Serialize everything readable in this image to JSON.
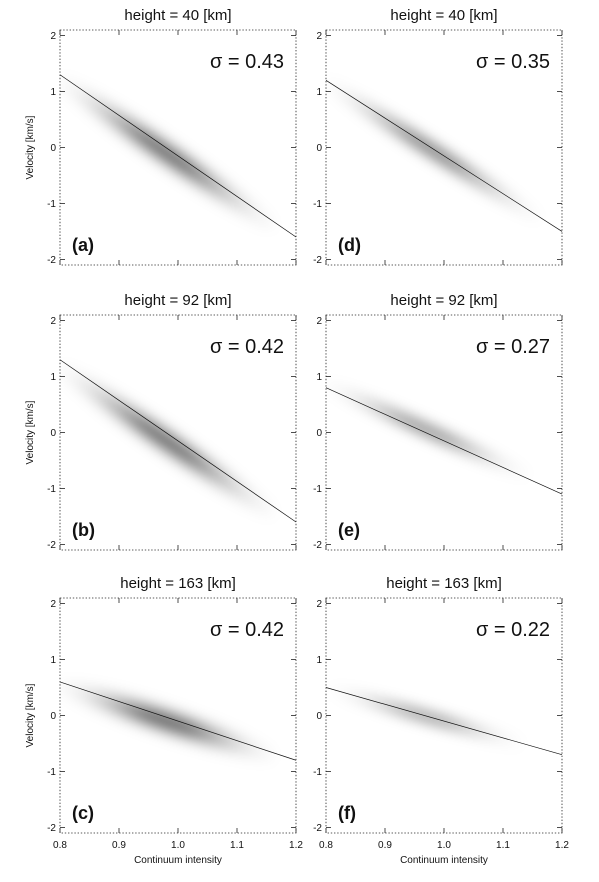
{
  "chart_data": [
    {
      "type": "heatmap",
      "panel": "(a)",
      "title": "height =  40  [km]",
      "sigma": "σ = 0.43",
      "ylabel": "Velocity [km/s]",
      "xlabel": "",
      "xlim": [
        0.8,
        1.2
      ],
      "ylim": [
        -2.1,
        2.1
      ],
      "xticks": [
        "0.8",
        "0.9",
        "1.0",
        "1.1",
        "1.2"
      ],
      "yticks": [
        "-2",
        "-1",
        "0",
        "1",
        "2"
      ],
      "fit": {
        "x": [
          0.8,
          1.2
        ],
        "y": [
          1.3,
          -1.6
        ]
      },
      "density": {
        "center": [
          0.98,
          -0.1
        ],
        "spread_along": 0.1,
        "spread_across": 0.3
      }
    },
    {
      "type": "heatmap",
      "panel": "(b)",
      "title": "height =  92  [km]",
      "sigma": "σ = 0.42",
      "ylabel": "Velocity [km/s]",
      "xlabel": "",
      "xlim": [
        0.8,
        1.2
      ],
      "ylim": [
        -2.1,
        2.1
      ],
      "xticks": [
        "0.8",
        "0.9",
        "1.0",
        "1.1",
        "1.2"
      ],
      "yticks": [
        "-2",
        "-1",
        "0",
        "1",
        "2"
      ],
      "fit": {
        "x": [
          0.8,
          1.2
        ],
        "y": [
          1.3,
          -1.6
        ]
      },
      "density": {
        "center": [
          0.98,
          -0.15
        ],
        "spread_along": 0.1,
        "spread_across": 0.3
      }
    },
    {
      "type": "heatmap",
      "panel": "(c)",
      "title": "height = 163  [km]",
      "sigma": "σ = 0.42",
      "ylabel": "Velocity [km/s]",
      "xlabel": "Continuum intensity",
      "xlim": [
        0.8,
        1.2
      ],
      "ylim": [
        -2.1,
        2.1
      ],
      "xticks": [
        "0.8",
        "0.9",
        "1.0",
        "1.1",
        "1.2"
      ],
      "yticks": [
        "-2",
        "-1",
        "0",
        "1",
        "2"
      ],
      "fit": {
        "x": [
          0.8,
          1.2
        ],
        "y": [
          0.6,
          -0.8
        ]
      },
      "density": {
        "center": [
          0.98,
          -0.1
        ],
        "spread_along": 0.1,
        "spread_across": 0.33
      }
    },
    {
      "type": "heatmap",
      "panel": "(d)",
      "title": "height =  40  [km]",
      "sigma": "σ = 0.35",
      "ylabel": "",
      "xlabel": "",
      "xlim": [
        0.8,
        1.2
      ],
      "ylim": [
        -2.1,
        2.1
      ],
      "xticks": [
        "0.8",
        "0.9",
        "1.0",
        "1.1",
        "1.2"
      ],
      "yticks": [
        "-2",
        "-1",
        "0",
        "1",
        "2"
      ],
      "fit": {
        "x": [
          0.8,
          1.2
        ],
        "y": [
          1.2,
          -1.5
        ]
      },
      "density": {
        "center": [
          0.98,
          -0.05
        ],
        "spread_along": 0.1,
        "spread_across": 0.2
      }
    },
    {
      "type": "heatmap",
      "panel": "(e)",
      "title": "height =  92  [km]",
      "sigma": "σ = 0.27",
      "ylabel": "",
      "xlabel": "",
      "xlim": [
        0.8,
        1.2
      ],
      "ylim": [
        -2.1,
        2.1
      ],
      "xticks": [
        "0.8",
        "0.9",
        "1.0",
        "1.1",
        "1.2"
      ],
      "yticks": [
        "-2",
        "-1",
        "0",
        "1",
        "2"
      ],
      "fit": {
        "x": [
          0.8,
          1.2
        ],
        "y": [
          0.8,
          -1.1
        ]
      },
      "density": {
        "center": [
          0.97,
          0.05
        ],
        "spread_along": 0.095,
        "spread_across": 0.16
      }
    },
    {
      "type": "heatmap",
      "panel": "(f)",
      "title": "height = 163  [km]",
      "sigma": "σ = 0.22",
      "ylabel": "",
      "xlabel": "Continuum intensity",
      "xlim": [
        0.8,
        1.2
      ],
      "ylim": [
        -2.1,
        2.1
      ],
      "xticks": [
        "0.8",
        "0.9",
        "1.0",
        "1.1",
        "1.2"
      ],
      "yticks": [
        "-2",
        "-1",
        "0",
        "1",
        "2"
      ],
      "fit": {
        "x": [
          0.8,
          1.2
        ],
        "y": [
          0.5,
          -0.7
        ]
      },
      "density": {
        "center": [
          0.97,
          -0.02
        ],
        "spread_along": 0.09,
        "spread_across": 0.13
      }
    }
  ]
}
